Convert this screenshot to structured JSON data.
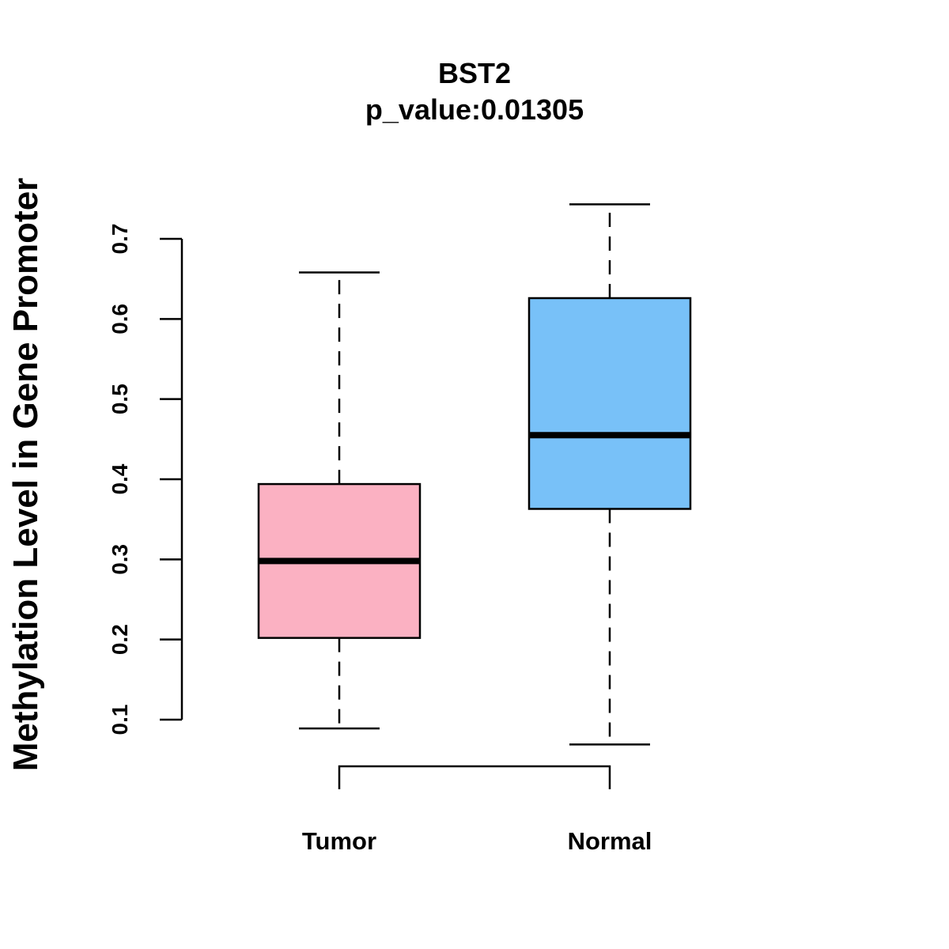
{
  "chart_data": {
    "type": "boxplot",
    "title": "BST2",
    "subtitle": "p_value:0.01305",
    "xlabel": "",
    "ylabel": "Methylation Level in Gene Promoter",
    "ylim": [
      0.1,
      0.7
    ],
    "yticks": [
      "0.1",
      "0.2",
      "0.3",
      "0.4",
      "0.5",
      "0.6",
      "0.7"
    ],
    "categories": [
      "Tumor",
      "Normal"
    ],
    "boxes": [
      {
        "name": "Tumor",
        "min": 0.089,
        "q1": 0.202,
        "median": 0.298,
        "q3": 0.394,
        "max": 0.658,
        "color": "#FBB1C2"
      },
      {
        "name": "Normal",
        "min": 0.069,
        "q1": 0.363,
        "median": 0.455,
        "q3": 0.626,
        "max": 0.743,
        "color": "#78C1F8"
      }
    ],
    "comparison_bracket": [
      "Tumor",
      "Normal"
    ]
  }
}
